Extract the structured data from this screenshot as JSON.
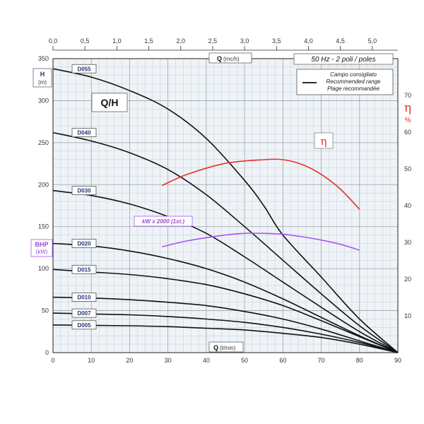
{
  "colors": {
    "curves": "#111111",
    "eff": "#e4302a",
    "bhp": "#a855f7",
    "label_text": "#1f3a7a",
    "bhp_label": "#9b4dca",
    "eff_label": "#e4302a",
    "background_band": "#dde6ee"
  },
  "chart_data": {
    "type": "line",
    "title": "Q/H",
    "header_label": "50 Hz - 2 poli / poles",
    "legend": {
      "line1": "Campo consigliato",
      "line2": "Recommended range",
      "line3": "Plage recommandée"
    },
    "x_bottom": {
      "label": "Q",
      "unit": "(l/min)",
      "lim": [
        0,
        90
      ],
      "ticks": [
        "0",
        "10",
        "20",
        "30",
        "40",
        "50",
        "60",
        "70",
        "80",
        "90"
      ]
    },
    "x_top": {
      "label": "Q",
      "unit": "(mc/h)",
      "lim": [
        0,
        5.4
      ],
      "ticks": [
        "0,0",
        "0,5",
        "1,0",
        "1,5",
        "2,0",
        "2,5",
        "3,0",
        "3,5",
        "4,0",
        "4,5",
        "5,0"
      ]
    },
    "y_left": {
      "label": "H",
      "unit": "(m)",
      "lim": [
        0,
        350
      ],
      "ticks": [
        "0",
        "50",
        "100",
        "150",
        "200",
        "250",
        "300",
        "350"
      ]
    },
    "y_right": {
      "label": "η",
      "unit": "%",
      "lim": [
        0,
        80
      ],
      "ticks": [
        "10",
        "20",
        "30",
        "40",
        "50",
        "60",
        "70"
      ]
    },
    "bhp_axis": {
      "label": "BHP",
      "unit": "(kW)"
    },
    "series": [
      {
        "name": "D055",
        "x": [
          0,
          10,
          20,
          30,
          40,
          50,
          55,
          60,
          70,
          80,
          90
        ],
        "y": [
          338,
          328,
          312,
          290,
          255,
          205,
          175,
          140,
          90,
          40,
          0
        ]
      },
      {
        "name": "D040",
        "x": [
          0,
          10,
          20,
          30,
          40,
          50,
          60,
          70,
          80,
          90
        ],
        "y": [
          262,
          252,
          238,
          218,
          188,
          150,
          110,
          70,
          32,
          0
        ]
      },
      {
        "name": "D030",
        "x": [
          0,
          10,
          20,
          30,
          40,
          50,
          60,
          70,
          80,
          90
        ],
        "y": [
          193,
          187,
          177,
          162,
          142,
          114,
          84,
          54,
          25,
          0
        ]
      },
      {
        "name": "D020",
        "x": [
          0,
          10,
          20,
          30,
          40,
          50,
          60,
          70,
          80,
          90
        ],
        "y": [
          130,
          127,
          121,
          112,
          100,
          84,
          64,
          42,
          20,
          0
        ]
      },
      {
        "name": "D015",
        "x": [
          0,
          10,
          20,
          30,
          40,
          50,
          60,
          70,
          80,
          90
        ],
        "y": [
          99,
          96,
          93,
          88,
          81,
          70,
          56,
          38,
          19,
          0
        ]
      },
      {
        "name": "D010",
        "x": [
          0,
          10,
          20,
          30,
          40,
          50,
          60,
          70,
          80,
          90
        ],
        "y": [
          66,
          65,
          63,
          60,
          56,
          49,
          40,
          28,
          14,
          0
        ]
      },
      {
        "name": "D007",
        "x": [
          0,
          10,
          20,
          30,
          40,
          50,
          60,
          70,
          80,
          90
        ],
        "y": [
          47,
          46,
          45,
          43,
          40,
          36,
          30,
          22,
          12,
          0
        ]
      },
      {
        "name": "D005",
        "x": [
          0,
          10,
          20,
          30,
          40,
          50,
          60,
          70,
          80,
          90
        ],
        "y": [
          33,
          32.5,
          32,
          31,
          29,
          27,
          23,
          18,
          10,
          0
        ]
      }
    ],
    "efficiency": {
      "name": "η",
      "x": [
        28.5,
        35,
        45,
        55,
        60,
        65,
        70,
        75,
        80
      ],
      "y": [
        45.5,
        48.5,
        51.5,
        52.5,
        52.5,
        51.2,
        48.5,
        44.5,
        39
      ]
    },
    "bhp": {
      "name": "kW x 2000 (1st.)",
      "x": [
        28.5,
        35,
        45,
        50,
        55,
        60,
        65,
        70,
        75,
        80
      ],
      "y": [
        126,
        133,
        140,
        142,
        142,
        141,
        138,
        134,
        129,
        122
      ]
    },
    "grid": true
  }
}
